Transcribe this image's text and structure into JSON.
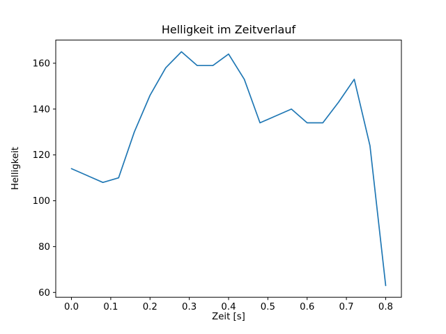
{
  "chart_data": {
    "type": "line",
    "title": "Helligkeit im Zeitverlauf",
    "xlabel": "Zeit [s]",
    "ylabel": "Helligkeit",
    "x": [
      0.0,
      0.04,
      0.08,
      0.12,
      0.16,
      0.2,
      0.24,
      0.28,
      0.32,
      0.36,
      0.4,
      0.44,
      0.48,
      0.52,
      0.56,
      0.6,
      0.64,
      0.68,
      0.72,
      0.76,
      0.8
    ],
    "y": [
      114,
      111,
      108,
      110,
      130,
      146,
      158,
      165,
      159,
      159,
      164,
      153,
      134,
      137,
      140,
      134,
      134,
      143,
      153,
      124,
      63
    ],
    "xlim": [
      -0.04,
      0.84
    ],
    "ylim": [
      57.9,
      170.1
    ],
    "xticks": [
      0.0,
      0.1,
      0.2,
      0.3,
      0.4,
      0.5,
      0.6,
      0.7,
      0.8
    ],
    "xtick_labels": [
      "0.0",
      "0.1",
      "0.2",
      "0.3",
      "0.4",
      "0.5",
      "0.6",
      "0.7",
      "0.8"
    ],
    "yticks": [
      60,
      80,
      100,
      120,
      140,
      160
    ],
    "ytick_labels": [
      "60",
      "80",
      "100",
      "120",
      "140",
      "160"
    ],
    "line_color": "#1f77b4",
    "spine_color": "#000000",
    "grid": "off",
    "legend": "none"
  }
}
